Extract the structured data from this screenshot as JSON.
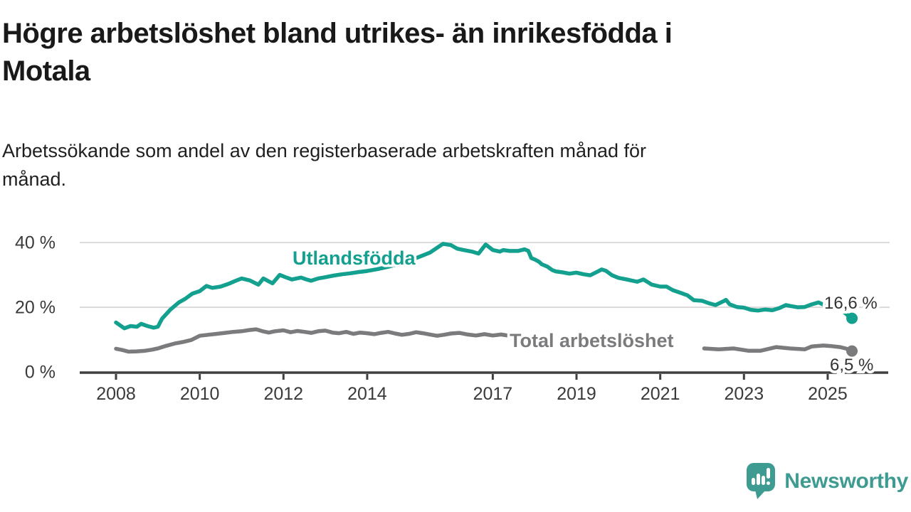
{
  "title": {
    "line1": "Högre arbetslöshet bland utrikes- än inrikesfödda i",
    "line2": "Motala"
  },
  "subtitle": {
    "line1": "Arbetssökande som andel av den registerbaserade arbetskraften månad för",
    "line2": "månad."
  },
  "branding": {
    "name": "Newsworthy",
    "logo_icon": "speech-bubble-bar-chart-icon",
    "color": "#3E9B91"
  },
  "colors": {
    "foreign_born_series": "#13A08F",
    "total_series": "#7B7B7E",
    "grid": "#D9D9D9",
    "axis": "#3F3F3F",
    "value_label": "#333333",
    "background": "#FFFFFF"
  },
  "chart_data": {
    "type": "line",
    "title": "Högre arbetslöshet bland utrikes- än inrikesfödda i Motala",
    "xlabel": "",
    "ylabel": "",
    "unit": "%",
    "grid": true,
    "legend_position": "inline-labels",
    "x_axis": {
      "min": 2007.8,
      "max": 2025.9,
      "ticks": [
        2008,
        2010,
        2012,
        2014,
        2017,
        2019,
        2021,
        2023,
        2025
      ]
    },
    "y_axis": {
      "min": 0,
      "max": 44,
      "tick_values": [
        0,
        20,
        40
      ],
      "tick_labels": [
        "0 %",
        "20 %",
        "40 %"
      ]
    },
    "series": [
      {
        "name": "Utlandsfödda",
        "color": "#13A08F",
        "end_label": "16,6 %",
        "end_value": 16.6,
        "segments": [
          [
            [
              2008.0,
              15.3
            ],
            [
              2008.1,
              14.4
            ],
            [
              2008.2,
              13.5
            ],
            [
              2008.35,
              14.2
            ],
            [
              2008.5,
              14.0
            ],
            [
              2008.6,
              14.9
            ],
            [
              2008.75,
              14.2
            ],
            [
              2008.9,
              13.7
            ],
            [
              2009.0,
              14.0
            ],
            [
              2009.1,
              16.5
            ],
            [
              2009.3,
              19.3
            ],
            [
              2009.5,
              21.5
            ],
            [
              2009.65,
              22.6
            ],
            [
              2009.82,
              24.2
            ],
            [
              2010.0,
              25.0
            ],
            [
              2010.16,
              26.6
            ],
            [
              2010.3,
              26.0
            ],
            [
              2010.5,
              26.4
            ],
            [
              2010.7,
              27.3
            ],
            [
              2010.84,
              28.1
            ],
            [
              2011.0,
              28.9
            ],
            [
              2011.2,
              28.3
            ],
            [
              2011.4,
              27.0
            ],
            [
              2011.52,
              28.9
            ],
            [
              2011.65,
              28.0
            ],
            [
              2011.74,
              27.4
            ],
            [
              2011.91,
              30.0
            ],
            [
              2012.05,
              29.3
            ],
            [
              2012.2,
              28.6
            ],
            [
              2012.42,
              29.2
            ],
            [
              2012.55,
              28.6
            ],
            [
              2012.66,
              28.2
            ],
            [
              2012.83,
              28.9
            ],
            [
              2013.0,
              29.3
            ],
            [
              2013.2,
              29.8
            ],
            [
              2013.4,
              30.2
            ],
            [
              2013.6,
              30.5
            ],
            [
              2013.8,
              30.9
            ],
            [
              2014.0,
              31.2
            ],
            [
              2014.25,
              31.8
            ],
            [
              2014.5,
              32.5
            ],
            [
              2014.75,
              33.4
            ],
            [
              2015.0,
              34.4
            ],
            [
              2015.25,
              35.6
            ],
            [
              2015.5,
              36.9
            ],
            [
              2015.81,
              39.6
            ],
            [
              2016.0,
              39.2
            ],
            [
              2016.15,
              38.1
            ],
            [
              2016.3,
              37.7
            ],
            [
              2016.5,
              37.2
            ],
            [
              2016.66,
              36.6
            ],
            [
              2016.83,
              39.4
            ],
            [
              2017.0,
              37.7
            ],
            [
              2017.17,
              37.2
            ],
            [
              2017.25,
              37.7
            ],
            [
              2017.4,
              37.4
            ],
            [
              2017.6,
              37.4
            ],
            [
              2017.76,
              37.9
            ],
            [
              2017.85,
              37.4
            ],
            [
              2017.92,
              35.2
            ],
            [
              2018.0,
              34.8
            ],
            [
              2018.1,
              34.1
            ],
            [
              2018.17,
              33.3
            ],
            [
              2018.3,
              32.6
            ],
            [
              2018.42,
              31.5
            ],
            [
              2018.5,
              31.1
            ],
            [
              2018.67,
              30.8
            ],
            [
              2018.83,
              30.4
            ],
            [
              2019.0,
              30.7
            ],
            [
              2019.17,
              30.2
            ],
            [
              2019.33,
              29.9
            ],
            [
              2019.5,
              31.0
            ],
            [
              2019.6,
              31.7
            ],
            [
              2019.7,
              31.3
            ],
            [
              2019.85,
              29.9
            ],
            [
              2020.0,
              29.1
            ],
            [
              2020.2,
              28.6
            ],
            [
              2020.45,
              27.9
            ],
            [
              2020.6,
              28.6
            ],
            [
              2020.8,
              27.0
            ],
            [
              2021.0,
              26.4
            ],
            [
              2021.15,
              26.4
            ],
            [
              2021.3,
              25.3
            ],
            [
              2021.5,
              24.4
            ],
            [
              2021.65,
              23.7
            ],
            [
              2021.8,
              22.2
            ],
            [
              2022.0,
              22.0
            ],
            [
              2022.15,
              21.3
            ],
            [
              2022.32,
              20.7
            ],
            [
              2022.5,
              21.8
            ],
            [
              2022.57,
              22.3
            ],
            [
              2022.66,
              20.9
            ],
            [
              2022.83,
              20.1
            ],
            [
              2023.0,
              19.9
            ],
            [
              2023.17,
              19.2
            ],
            [
              2023.34,
              19.0
            ],
            [
              2023.5,
              19.3
            ],
            [
              2023.68,
              19.1
            ],
            [
              2023.85,
              19.8
            ],
            [
              2024.0,
              20.7
            ],
            [
              2024.11,
              20.4
            ],
            [
              2024.28,
              20.0
            ],
            [
              2024.45,
              20.1
            ],
            [
              2024.62,
              20.9
            ],
            [
              2024.78,
              21.5
            ],
            [
              2024.9,
              20.8
            ],
            [
              2025.0,
              20.4
            ],
            [
              2025.1,
              20.9
            ],
            [
              2025.2,
              21.3
            ],
            [
              2025.3,
              20.0
            ],
            [
              2025.4,
              18.4
            ],
            [
              2025.5,
              17.3
            ],
            [
              2025.58,
              16.6
            ]
          ]
        ]
      },
      {
        "name": "Total arbetslöshet",
        "color": "#7B7B7E",
        "end_label": "6,5 %",
        "end_value": 6.5,
        "segments": [
          [
            [
              2008.0,
              7.2
            ],
            [
              2008.15,
              6.8
            ],
            [
              2008.3,
              6.3
            ],
            [
              2008.5,
              6.4
            ],
            [
              2008.7,
              6.6
            ],
            [
              2008.85,
              6.9
            ],
            [
              2009.0,
              7.3
            ],
            [
              2009.2,
              8.1
            ],
            [
              2009.4,
              8.8
            ],
            [
              2009.6,
              9.3
            ],
            [
              2009.8,
              9.9
            ],
            [
              2010.0,
              11.2
            ],
            [
              2010.2,
              11.5
            ],
            [
              2010.4,
              11.8
            ],
            [
              2010.6,
              12.1
            ],
            [
              2010.8,
              12.4
            ],
            [
              2011.0,
              12.6
            ],
            [
              2011.2,
              13.0
            ],
            [
              2011.35,
              13.2
            ],
            [
              2011.5,
              12.6
            ],
            [
              2011.65,
              12.2
            ],
            [
              2011.8,
              12.6
            ],
            [
              2012.0,
              12.9
            ],
            [
              2012.17,
              12.3
            ],
            [
              2012.33,
              12.7
            ],
            [
              2012.5,
              12.4
            ],
            [
              2012.67,
              12.1
            ],
            [
              2012.83,
              12.6
            ],
            [
              2013.0,
              12.8
            ],
            [
              2013.17,
              12.2
            ],
            [
              2013.33,
              12.0
            ],
            [
              2013.5,
              12.4
            ],
            [
              2013.67,
              11.8
            ],
            [
              2013.83,
              12.2
            ],
            [
              2014.0,
              12.0
            ],
            [
              2014.17,
              11.7
            ],
            [
              2014.33,
              12.1
            ],
            [
              2014.5,
              12.4
            ],
            [
              2014.67,
              11.9
            ],
            [
              2014.83,
              11.5
            ],
            [
              2015.0,
              11.8
            ],
            [
              2015.17,
              12.3
            ],
            [
              2015.33,
              12.0
            ],
            [
              2015.5,
              11.6
            ],
            [
              2015.67,
              11.2
            ],
            [
              2015.83,
              11.5
            ],
            [
              2016.0,
              11.9
            ],
            [
              2016.2,
              12.1
            ],
            [
              2016.4,
              11.6
            ],
            [
              2016.6,
              11.3
            ],
            [
              2016.8,
              11.7
            ],
            [
              2017.0,
              11.3
            ],
            [
              2017.2,
              11.6
            ],
            [
              2017.35,
              11.3
            ]
          ],
          [
            [
              2022.05,
              7.3
            ],
            [
              2022.4,
              7.0
            ],
            [
              2022.75,
              7.3
            ],
            [
              2023.1,
              6.6
            ],
            [
              2023.4,
              6.6
            ],
            [
              2023.6,
              7.2
            ],
            [
              2023.77,
              7.7
            ],
            [
              2024.1,
              7.3
            ],
            [
              2024.45,
              7.0
            ],
            [
              2024.62,
              7.9
            ],
            [
              2024.9,
              8.2
            ],
            [
              2025.1,
              8.0
            ],
            [
              2025.3,
              7.7
            ],
            [
              2025.45,
              7.2
            ],
            [
              2025.58,
              6.5
            ]
          ]
        ]
      }
    ]
  }
}
